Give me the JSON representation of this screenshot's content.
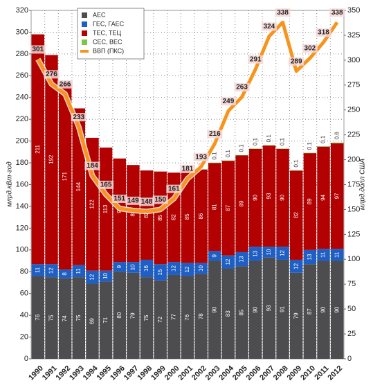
{
  "chart_data": {
    "type": "bar",
    "stacked": true,
    "categories": [
      "1990",
      "1991",
      "1992",
      "1993",
      "1994",
      "1995",
      "1996",
      "1997",
      "1998",
      "1999",
      "2000",
      "2001",
      "2002",
      "2003",
      "2004",
      "2005",
      "2006",
      "2007",
      "2008",
      "2009",
      "2010",
      "2011",
      "2012"
    ],
    "series": [
      {
        "name": "АЕС",
        "color": "#4d4d4f",
        "values": [
          76,
          75,
          74,
          75,
          69,
          71,
          80,
          79,
          75,
          72,
          77,
          76,
          78,
          90,
          83,
          85,
          90,
          93,
          91,
          79,
          87,
          90,
          90
        ]
      },
      {
        "name": "ГЕС, ГАЕС",
        "color": "#1f5fc4",
        "values": [
          11,
          12,
          8,
          11,
          12,
          10,
          9,
          10,
          16,
          15,
          12,
          12,
          10,
          9,
          12,
          13,
          13,
          10,
          12,
          12,
          13,
          11,
          11
        ]
      },
      {
        "name": "ТЕС, ТЕЦ",
        "color": "#b30000",
        "values": [
          211,
          192,
          171,
          144,
          122,
          113,
          95,
          89,
          82,
          85,
          82,
          85,
          86,
          81,
          87,
          89,
          90,
          93,
          90,
          82,
          89,
          94,
          97
        ]
      },
      {
        "name": "СЕС, ВЕС",
        "color": "#7ac943",
        "values": [
          null,
          null,
          null,
          null,
          null,
          null,
          null,
          null,
          null,
          null,
          null,
          null,
          0.1,
          0.1,
          0.1,
          0.1,
          0.1,
          0.1,
          0.1,
          0.1,
          0.1,
          0.1,
          0.6
        ]
      },
      {
        "name": "ВВП (ПКС)",
        "color": "#f7941d",
        "type": "line",
        "axis": "y2",
        "values": [
          301,
          276,
          266,
          233,
          184,
          165,
          151,
          149,
          148,
          150,
          161,
          181,
          193,
          216,
          249,
          263,
          291,
          324,
          338,
          289,
          302,
          318,
          338
        ]
      }
    ],
    "ylabel": "млрд.кВт·год",
    "y2label": "млрд.долл США",
    "ylim": [
      0,
      320
    ],
    "yticks": [
      0,
      20,
      40,
      60,
      80,
      100,
      120,
      140,
      160,
      180,
      200,
      220,
      240,
      260,
      280,
      300,
      320
    ],
    "y2lim": [
      0,
      350
    ],
    "y2ticks": [
      0,
      25,
      50,
      75,
      100,
      125,
      150,
      175,
      200,
      225,
      250,
      275,
      300,
      325,
      350
    ],
    "grid": true,
    "legend": "upper left"
  }
}
